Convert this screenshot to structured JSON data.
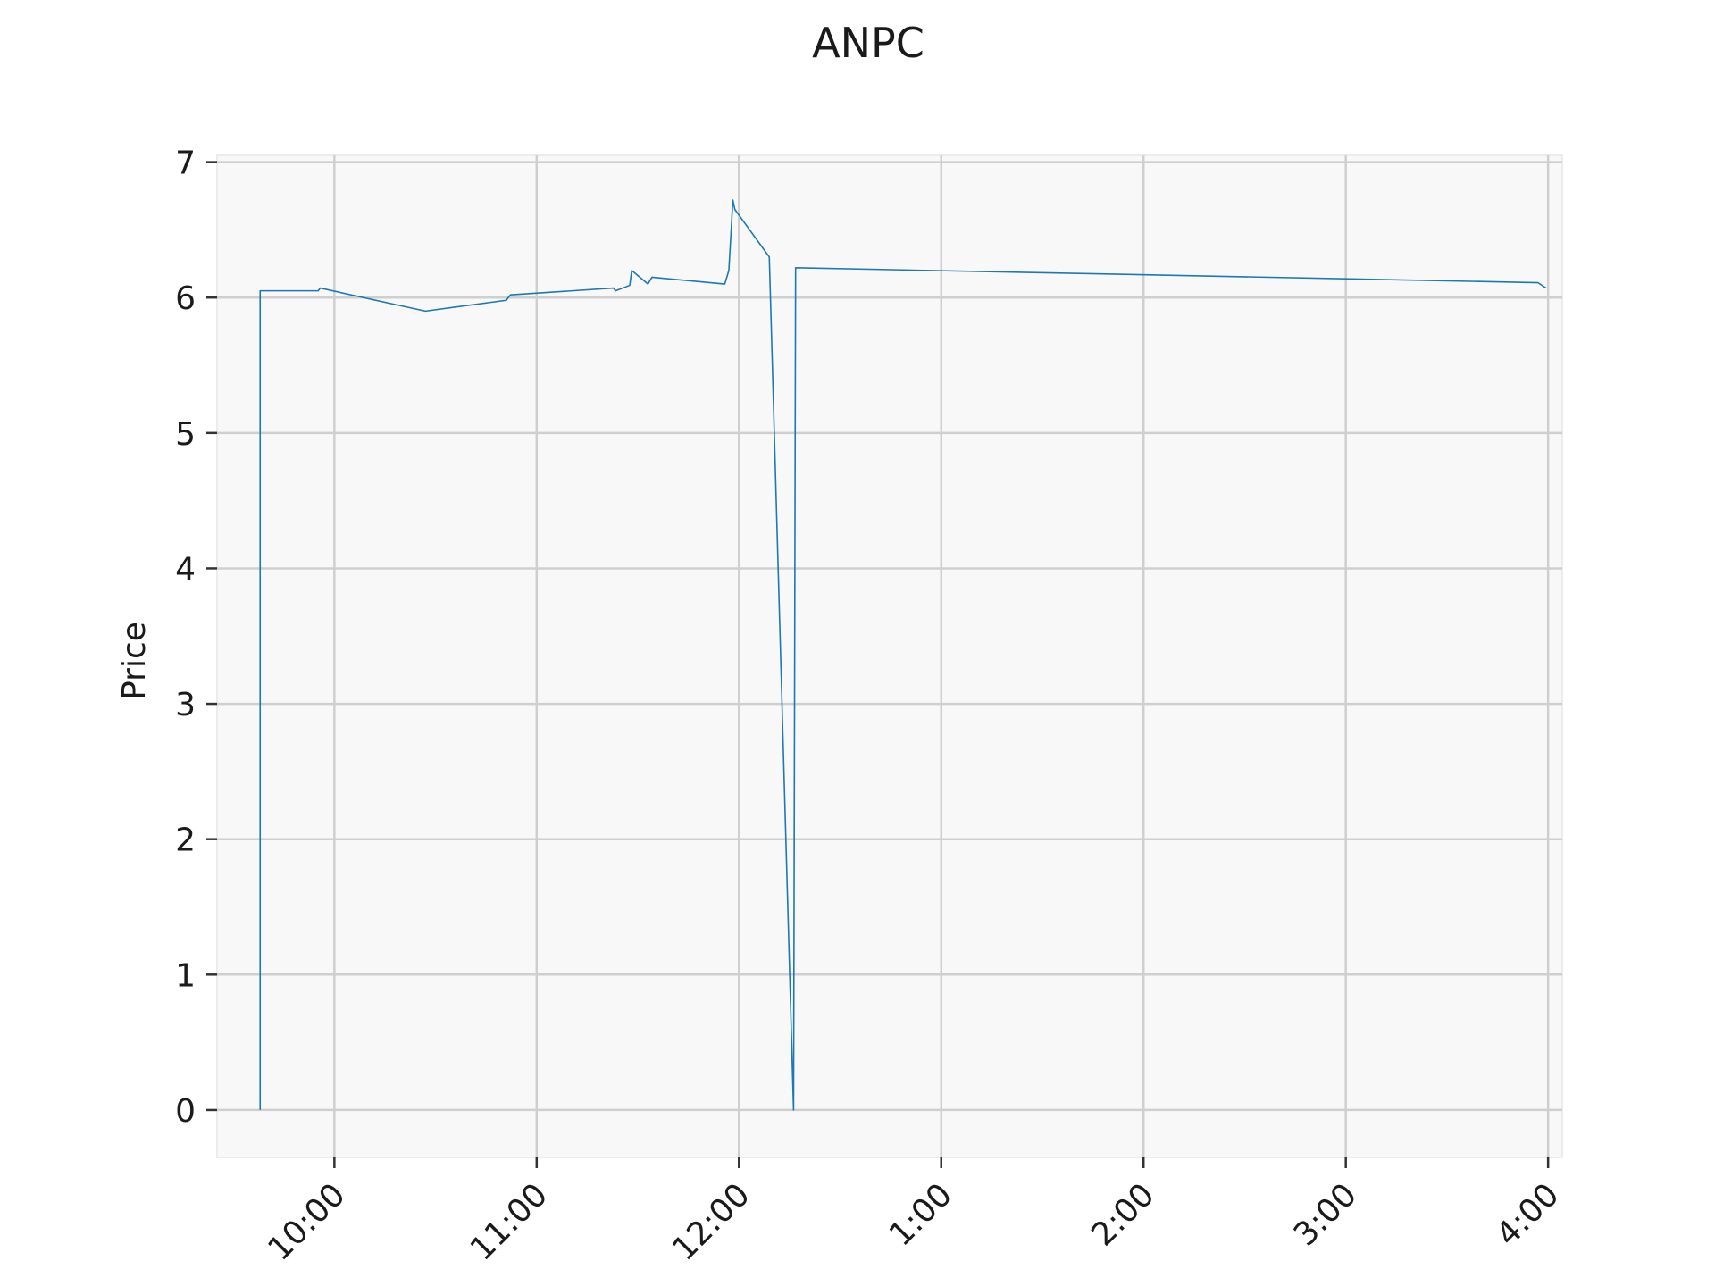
{
  "chart_data": {
    "type": "line",
    "title": "ANPC",
    "xlabel": "",
    "ylabel": "Price",
    "x_unit": "time of day (hours, 24h)",
    "x_ticks": [
      {
        "value": 10,
        "label": "10:00"
      },
      {
        "value": 11,
        "label": "11:00"
      },
      {
        "value": 12,
        "label": "12:00"
      },
      {
        "value": 13,
        "label": "1:00"
      },
      {
        "value": 14,
        "label": "2:00"
      },
      {
        "value": 15,
        "label": "3:00"
      },
      {
        "value": 16,
        "label": "4:00"
      }
    ],
    "y_ticks": [
      0,
      1,
      2,
      3,
      4,
      5,
      6,
      7
    ],
    "xlim": [
      9.42,
      16.07
    ],
    "ylim": [
      -0.35,
      7.05
    ],
    "grid": true,
    "series_color": "#1f77b4",
    "series": [
      {
        "x": [
          9.633,
          9.633,
          9.92,
          9.93,
          10.45,
          10.85,
          10.87,
          11.38,
          11.39,
          11.46,
          11.47,
          11.55,
          11.57,
          11.93,
          11.95,
          11.97,
          11.98,
          12.15,
          12.27,
          12.28,
          15.95,
          15.99
        ],
        "y": [
          0.0,
          6.05,
          6.05,
          6.07,
          5.9,
          5.98,
          6.02,
          6.07,
          6.05,
          6.09,
          6.2,
          6.1,
          6.15,
          6.1,
          6.2,
          6.72,
          6.65,
          6.3,
          0.0,
          6.22,
          6.11,
          6.07
        ]
      }
    ]
  }
}
